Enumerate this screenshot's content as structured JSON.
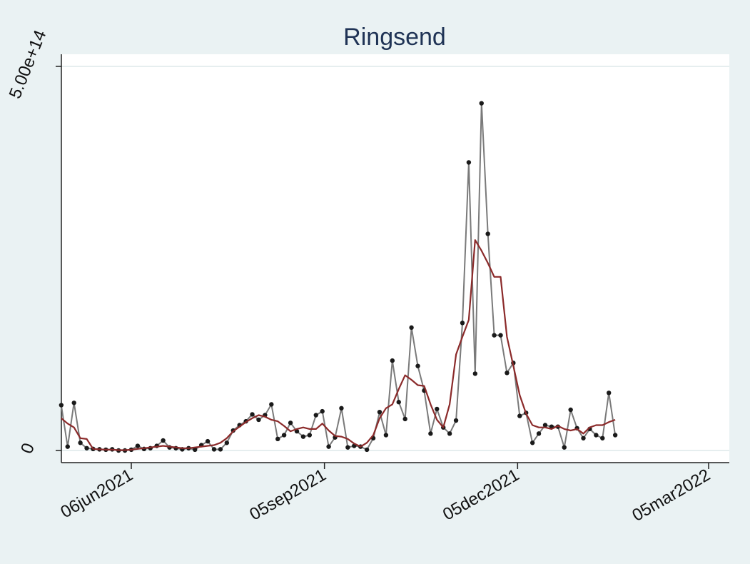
{
  "chart_data": {
    "type": "line",
    "title": "Ringsend",
    "xlabel": "",
    "ylabel": "",
    "ylim": [
      0,
      500000000000000
    ],
    "y_ticks": [
      {
        "value": 0,
        "label": "0"
      },
      {
        "value": 500000000000000,
        "label": "5.00e+14"
      }
    ],
    "x_ticks": [
      {
        "value": "2021-06-06",
        "label": "06jun2021"
      },
      {
        "value": "2021-09-05",
        "label": "05sep2021"
      },
      {
        "value": "2021-12-05",
        "label": "05dec2021"
      },
      {
        "value": "2022-03-05",
        "label": "05mar2022"
      }
    ],
    "grid": "horizontal at y ticks",
    "legend": "none",
    "colors": {
      "observed": "#7a7a7a",
      "marker": "#1a1a1a",
      "smoothed": "#8b2a2a",
      "title": "#1f3355",
      "plot_bg": "#ffffff",
      "outer_bg": "#eaf2f3"
    },
    "series": [
      {
        "style": "line-with-markers",
        "values": [
          [
            "2021-05-04",
            59000000000000.0
          ],
          [
            "2021-05-07",
            5000000000000.0
          ],
          [
            "2021-05-10",
            62000000000000.0
          ],
          [
            "2021-05-13",
            10000000000000.0
          ],
          [
            "2021-05-16",
            3000000000000.0
          ],
          [
            "2021-05-19",
            2000000000000.0
          ],
          [
            "2021-05-22",
            1500000000000.0
          ],
          [
            "2021-05-25",
            1000000000000.0
          ],
          [
            "2021-05-28",
            1500000000000.0
          ],
          [
            "2021-05-31",
            0
          ],
          [
            "2021-06-03",
            0
          ],
          [
            "2021-06-06",
            1000000000000.0
          ],
          [
            "2021-06-09",
            6000000000000.0
          ],
          [
            "2021-06-12",
            2000000000000.0
          ],
          [
            "2021-06-15",
            3000000000000.0
          ],
          [
            "2021-06-18",
            6000000000000.0
          ],
          [
            "2021-06-21",
            13000000000000.0
          ],
          [
            "2021-06-24",
            4000000000000.0
          ],
          [
            "2021-06-27",
            3000000000000.0
          ],
          [
            "2021-06-30",
            1500000000000.0
          ],
          [
            "2021-07-03",
            3000000000000.0
          ],
          [
            "2021-07-06",
            1000000000000.0
          ],
          [
            "2021-07-09",
            7000000000000.0
          ],
          [
            "2021-07-12",
            12000000000000.0
          ],
          [
            "2021-07-15",
            1500000000000.0
          ],
          [
            "2021-07-18",
            1500000000000.0
          ],
          [
            "2021-07-21",
            10000000000000.0
          ],
          [
            "2021-07-24",
            26000000000000.0
          ],
          [
            "2021-07-27",
            33000000000000.0
          ],
          [
            "2021-07-30",
            38000000000000.0
          ],
          [
            "2021-08-02",
            47000000000000.0
          ],
          [
            "2021-08-05",
            40000000000000.0
          ],
          [
            "2021-08-08",
            46000000000000.0
          ],
          [
            "2021-08-11",
            60000000000000.0
          ],
          [
            "2021-08-14",
            15000000000000.0
          ],
          [
            "2021-08-17",
            20000000000000.0
          ],
          [
            "2021-08-20",
            36000000000000.0
          ],
          [
            "2021-08-23",
            25000000000000.0
          ],
          [
            "2021-08-26",
            18000000000000.0
          ],
          [
            "2021-08-29",
            20000000000000.0
          ],
          [
            "2021-09-01",
            46000000000000.0
          ],
          [
            "2021-09-04",
            51000000000000.0
          ],
          [
            "2021-09-07",
            5000000000000.0
          ],
          [
            "2021-09-10",
            17000000000000.0
          ],
          [
            "2021-09-13",
            55000000000000.0
          ],
          [
            "2021-09-16",
            4000000000000.0
          ],
          [
            "2021-09-19",
            6000000000000.0
          ],
          [
            "2021-09-22",
            5000000000000.0
          ],
          [
            "2021-09-25",
            1000000000000.0
          ],
          [
            "2021-09-28",
            16000000000000.0
          ],
          [
            "2021-10-01",
            50000000000000.0
          ],
          [
            "2021-10-04",
            20000000000000.0
          ],
          [
            "2021-10-07",
            117000000000000.0
          ],
          [
            "2021-10-10",
            63000000000000.0
          ],
          [
            "2021-10-13",
            41000000000000.0
          ],
          [
            "2021-10-16",
            160000000000000.0
          ],
          [
            "2021-10-19",
            110000000000000.0
          ],
          [
            "2021-10-22",
            78000000000000.0
          ],
          [
            "2021-10-25",
            22000000000000.0
          ],
          [
            "2021-10-28",
            54000000000000.0
          ],
          [
            "2021-10-31",
            30000000000000.0
          ],
          [
            "2021-11-03",
            22000000000000.0
          ],
          [
            "2021-11-06",
            39000000000000.0
          ],
          [
            "2021-11-09",
            166000000000000.0
          ],
          [
            "2021-11-12",
            375000000000000.0
          ],
          [
            "2021-11-15",
            100000000000000.0
          ],
          [
            "2021-11-18",
            452000000000000.0
          ],
          [
            "2021-11-21",
            282000000000000.0
          ],
          [
            "2021-11-24",
            150000000000000.0
          ],
          [
            "2021-11-27",
            150000000000000.0
          ],
          [
            "2021-11-30",
            101000000000000.0
          ],
          [
            "2021-12-03",
            114000000000000.0
          ],
          [
            "2021-12-06",
            45000000000000.0
          ],
          [
            "2021-12-09",
            49000000000000.0
          ],
          [
            "2021-12-12",
            10000000000000.0
          ],
          [
            "2021-12-15",
            22000000000000.0
          ],
          [
            "2021-12-18",
            33000000000000.0
          ],
          [
            "2021-12-21",
            31000000000000.0
          ],
          [
            "2021-12-24",
            31000000000000.0
          ],
          [
            "2021-12-27",
            4000000000000.0
          ],
          [
            "2021-12-30",
            53000000000000.0
          ],
          [
            "2022-01-02",
            29000000000000.0
          ],
          [
            "2022-01-05",
            16000000000000.0
          ],
          [
            "2022-01-08",
            28000000000000.0
          ],
          [
            "2022-01-11",
            20000000000000.0
          ],
          [
            "2022-01-14",
            16000000000000.0
          ],
          [
            "2022-01-17",
            75000000000000.0
          ],
          [
            "2022-01-20",
            20000000000000.0
          ]
        ]
      },
      {
        "style": "smoothed-line",
        "values": [
          [
            "2021-05-04",
            42000000000000.0
          ],
          [
            "2021-05-07",
            35000000000000.0
          ],
          [
            "2021-05-10",
            30000000000000.0
          ],
          [
            "2021-05-13",
            16000000000000.0
          ],
          [
            "2021-05-16",
            15000000000000.0
          ],
          [
            "2021-05-19",
            2000000000000.0
          ],
          [
            "2021-05-22",
            1500000000000.0
          ],
          [
            "2021-05-25",
            1000000000000.0
          ],
          [
            "2021-05-28",
            1000000000000.0
          ],
          [
            "2021-05-31",
            500000000000.0
          ],
          [
            "2021-06-03",
            500000000000.0
          ],
          [
            "2021-06-06",
            1000000000000.0
          ],
          [
            "2021-06-09",
            2000000000000.0
          ],
          [
            "2021-06-12",
            3000000000000.0
          ],
          [
            "2021-06-15",
            4000000000000.0
          ],
          [
            "2021-06-18",
            5000000000000.0
          ],
          [
            "2021-06-21",
            6000000000000.0
          ],
          [
            "2021-06-24",
            5000000000000.0
          ],
          [
            "2021-06-27",
            4000000000000.0
          ],
          [
            "2021-06-30",
            3000000000000.0
          ],
          [
            "2021-07-03",
            3000000000000.0
          ],
          [
            "2021-07-06",
            4000000000000.0
          ],
          [
            "2021-07-09",
            5000000000000.0
          ],
          [
            "2021-07-12",
            6000000000000.0
          ],
          [
            "2021-07-15",
            7000000000000.0
          ],
          [
            "2021-07-18",
            10000000000000.0
          ],
          [
            "2021-07-21",
            16000000000000.0
          ],
          [
            "2021-07-24",
            25000000000000.0
          ],
          [
            "2021-07-27",
            31000000000000.0
          ],
          [
            "2021-07-30",
            37000000000000.0
          ],
          [
            "2021-08-02",
            42000000000000.0
          ],
          [
            "2021-08-05",
            46000000000000.0
          ],
          [
            "2021-08-08",
            44000000000000.0
          ],
          [
            "2021-08-11",
            40000000000000.0
          ],
          [
            "2021-08-14",
            38000000000000.0
          ],
          [
            "2021-08-17",
            32000000000000.0
          ],
          [
            "2021-08-20",
            25000000000000.0
          ],
          [
            "2021-08-23",
            28000000000000.0
          ],
          [
            "2021-08-26",
            30000000000000.0
          ],
          [
            "2021-08-29",
            28000000000000.0
          ],
          [
            "2021-09-01",
            28000000000000.0
          ],
          [
            "2021-09-04",
            35000000000000.0
          ],
          [
            "2021-09-07",
            26000000000000.0
          ],
          [
            "2021-09-10",
            19000000000000.0
          ],
          [
            "2021-09-13",
            18000000000000.0
          ],
          [
            "2021-09-16",
            15000000000000.0
          ],
          [
            "2021-09-19",
            9000000000000.0
          ],
          [
            "2021-09-22",
            5000000000000.0
          ],
          [
            "2021-09-25",
            10000000000000.0
          ],
          [
            "2021-09-28",
            20000000000000.0
          ],
          [
            "2021-10-01",
            42000000000000.0
          ],
          [
            "2021-10-04",
            55000000000000.0
          ],
          [
            "2021-10-07",
            60000000000000.0
          ],
          [
            "2021-10-10",
            80000000000000.0
          ],
          [
            "2021-10-13",
            98000000000000.0
          ],
          [
            "2021-10-16",
            92000000000000.0
          ],
          [
            "2021-10-19",
            85000000000000.0
          ],
          [
            "2021-10-22",
            84000000000000.0
          ],
          [
            "2021-10-25",
            60000000000000.0
          ],
          [
            "2021-10-28",
            40000000000000.0
          ],
          [
            "2021-10-31",
            30000000000000.0
          ],
          [
            "2021-11-03",
            60000000000000.0
          ],
          [
            "2021-11-06",
            125000000000000.0
          ],
          [
            "2021-11-09",
            148000000000000.0
          ],
          [
            "2021-11-12",
            170000000000000.0
          ],
          [
            "2021-11-15",
            274000000000000.0
          ],
          [
            "2021-11-18",
            260000000000000.0
          ],
          [
            "2021-11-21",
            244000000000000.0
          ],
          [
            "2021-11-24",
            226000000000000.0
          ],
          [
            "2021-11-27",
            226000000000000.0
          ],
          [
            "2021-11-30",
            148000000000000.0
          ],
          [
            "2021-12-03",
            110000000000000.0
          ],
          [
            "2021-12-06",
            72000000000000.0
          ],
          [
            "2021-12-09",
            48000000000000.0
          ],
          [
            "2021-12-12",
            33000000000000.0
          ],
          [
            "2021-12-15",
            30000000000000.0
          ],
          [
            "2021-12-18",
            30000000000000.0
          ],
          [
            "2021-12-21",
            28000000000000.0
          ],
          [
            "2021-12-24",
            32000000000000.0
          ],
          [
            "2021-12-27",
            28000000000000.0
          ],
          [
            "2021-12-30",
            26000000000000.0
          ],
          [
            "2022-01-02",
            28000000000000.0
          ],
          [
            "2022-01-05",
            22000000000000.0
          ],
          [
            "2022-01-08",
            30000000000000.0
          ],
          [
            "2022-01-11",
            33000000000000.0
          ],
          [
            "2022-01-14",
            33000000000000.0
          ],
          [
            "2022-01-17",
            37000000000000.0
          ],
          [
            "2022-01-20",
            40000000000000.0
          ]
        ]
      }
    ]
  }
}
